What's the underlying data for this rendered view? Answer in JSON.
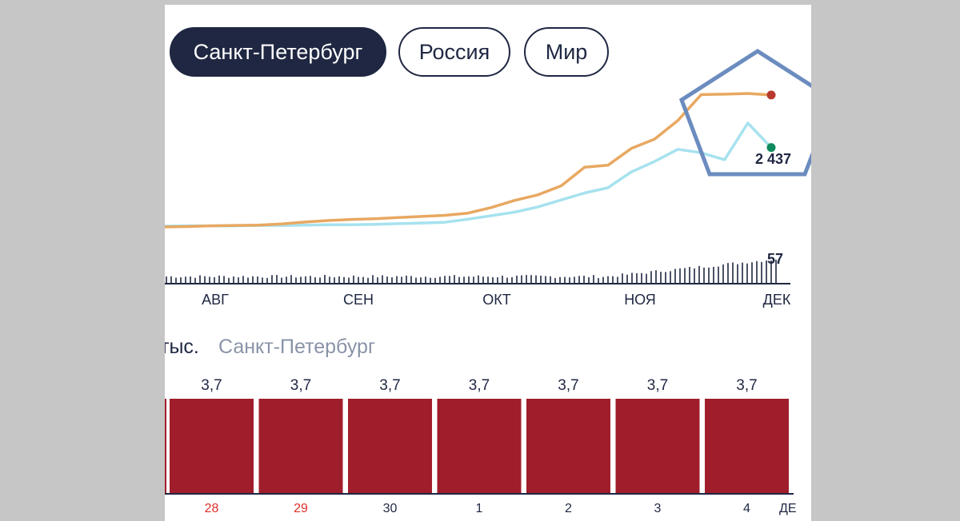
{
  "region_tabs": [
    {
      "label": "Санкт-Петербург",
      "active": true
    },
    {
      "label": "Россия",
      "active": false
    },
    {
      "label": "Мир",
      "active": false
    }
  ],
  "colors": {
    "dark": "#1f2742",
    "bar": "#a01e2c",
    "orange": "#e8a861",
    "red": "#b83a2e",
    "light_blue": "#a6e2ee",
    "teal": "#3ec8a3",
    "green": "#0e8a5e",
    "weekend": "#e0302a",
    "muted": "#8a93a8",
    "pentagon": "#6b8cbf"
  },
  "chart_data": [
    {
      "type": "line",
      "series": [
        {
          "values": [
            1.5,
            1.6,
            1.8,
            1.9,
            2,
            2.3,
            2.8,
            3.2,
            3.5,
            3.7,
            4,
            4.3,
            4.6,
            5.2,
            6.7,
            8.6,
            10.1,
            12.5,
            17.5,
            18,
            22.5,
            25,
            30,
            36.9,
            37,
            37.2,
            36.8
          ]
        },
        {
          "values": [
            0.5,
            0.6,
            0.6,
            0.6,
            0.7,
            0.7,
            0.8,
            0.9,
            0.9,
            1,
            1.2,
            1.4,
            1.6,
            2.5,
            3.5,
            4.5,
            6,
            8,
            10,
            11.5,
            16,
            19,
            22.5,
            21.5,
            19.5,
            30,
            23
          ]
        }
      ],
      "x_ticks": [
        "АВГ",
        "СЕН",
        "ОКТ",
        "НОЯ",
        "ДЕК"
      ],
      "end_label": "2 437",
      "bar_max_label": "57"
    },
    {
      "type": "bar",
      "unit": "тыс.",
      "region": "Санкт-Петербург",
      "categories": [
        "28",
        "29",
        "30",
        "1",
        "2",
        "3",
        "4"
      ],
      "weekend": [
        true,
        true,
        false,
        false,
        false,
        false,
        false
      ],
      "values": [
        3.7,
        3.7,
        3.7,
        3.7,
        3.7,
        3.7,
        3.7
      ],
      "value_labels": [
        "3,7",
        "3,7",
        "3,7",
        "3,7",
        "3,7",
        "3,7",
        "3,7"
      ],
      "trailing_label": "ДЕ"
    }
  ]
}
